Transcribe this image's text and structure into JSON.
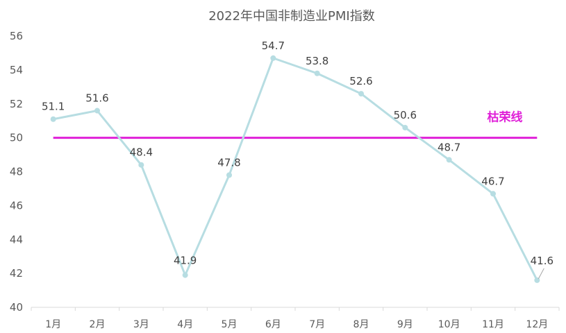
{
  "chart_data": {
    "type": "line",
    "title": "2022年中国非制造业PMI指数",
    "categories": [
      "1月",
      "2月",
      "3月",
      "4月",
      "5月",
      "6月",
      "7月",
      "8月",
      "9月",
      "10月",
      "11月",
      "12月"
    ],
    "series": [
      {
        "values": [
          51.1,
          51.6,
          48.4,
          41.9,
          47.8,
          54.7,
          53.8,
          52.6,
          50.6,
          48.7,
          46.7,
          41.6
        ],
        "labels": [
          "51.1",
          "51.6",
          "48.4",
          "41.9",
          "47.8",
          "54.7",
          "53.8",
          "52.6",
          "50.6",
          "48.7",
          "46.7",
          "41.6"
        ],
        "color": "#b7dde2"
      }
    ],
    "reference_line": {
      "name": "枯荣线",
      "value": 50,
      "color": "#e020d8"
    },
    "ylim": [
      40,
      56
    ],
    "yticks": [
      40,
      42,
      44,
      46,
      48,
      50,
      52,
      54,
      56
    ],
    "ytick_labels": [
      "40",
      "42",
      "44",
      "46",
      "48",
      "50",
      "52",
      "54",
      "56"
    ],
    "grid": false,
    "legend": "none",
    "xlabel": "",
    "ylabel": ""
  }
}
